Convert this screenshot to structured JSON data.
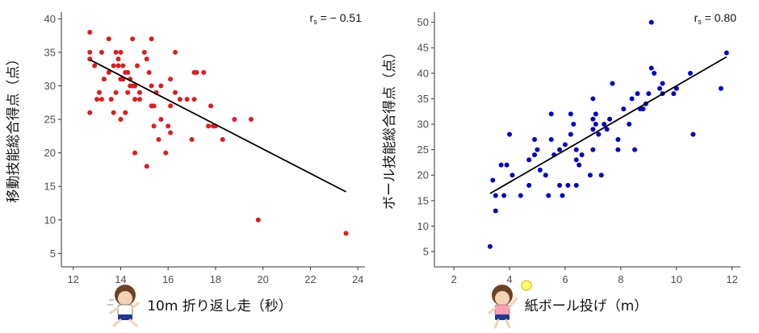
{
  "chart_data": [
    {
      "type": "scatter",
      "xlabel": "10m 折り返し走（秒）",
      "ylabel": "移動技能総合得点（点）",
      "annotation": {
        "prefix": "r",
        "subscript": "s",
        "value": " = − 0.51"
      },
      "xlim": [
        11.5,
        24.3
      ],
      "ylim": [
        3,
        41
      ],
      "xticks": [
        12,
        14,
        16,
        18,
        20,
        22,
        24
      ],
      "yticks": [
        5,
        10,
        15,
        20,
        25,
        30,
        35,
        40
      ],
      "color": "#e41a1c",
      "regression": {
        "x": [
          12.7,
          23.5
        ],
        "y": [
          33.9,
          14.2
        ]
      },
      "points": [
        [
          12.7,
          38
        ],
        [
          12.7,
          35
        ],
        [
          12.7,
          34
        ],
        [
          12.7,
          26
        ],
        [
          12.9,
          33
        ],
        [
          13.0,
          28
        ],
        [
          13.1,
          29
        ],
        [
          13.2,
          28
        ],
        [
          13.2,
          35
        ],
        [
          13.3,
          31
        ],
        [
          13.5,
          32
        ],
        [
          13.5,
          37
        ],
        [
          13.6,
          28
        ],
        [
          13.7,
          33
        ],
        [
          13.7,
          26
        ],
        [
          13.8,
          35
        ],
        [
          13.8,
          29
        ],
        [
          13.9,
          34
        ],
        [
          13.9,
          33
        ],
        [
          14.0,
          35
        ],
        [
          14.0,
          31
        ],
        [
          14.0,
          25
        ],
        [
          14.1,
          33
        ],
        [
          14.1,
          31
        ],
        [
          14.2,
          32
        ],
        [
          14.2,
          26
        ],
        [
          14.3,
          29
        ],
        [
          14.3,
          32
        ],
        [
          14.4,
          31
        ],
        [
          14.4,
          30
        ],
        [
          14.5,
          37
        ],
        [
          14.5,
          30
        ],
        [
          14.6,
          28
        ],
        [
          14.6,
          30
        ],
        [
          14.6,
          20
        ],
        [
          14.7,
          33
        ],
        [
          14.8,
          29
        ],
        [
          14.8,
          28
        ],
        [
          15.0,
          35
        ],
        [
          15.1,
          34
        ],
        [
          15.1,
          18
        ],
        [
          15.2,
          32
        ],
        [
          15.3,
          37
        ],
        [
          15.3,
          30
        ],
        [
          15.3,
          27
        ],
        [
          15.4,
          24
        ],
        [
          15.4,
          27
        ],
        [
          15.5,
          29
        ],
        [
          15.6,
          22
        ],
        [
          15.7,
          30
        ],
        [
          15.7,
          25
        ],
        [
          15.9,
          20
        ],
        [
          16.0,
          24
        ],
        [
          16.1,
          27
        ],
        [
          16.1,
          23
        ],
        [
          16.1,
          31
        ],
        [
          16.3,
          35
        ],
        [
          16.3,
          29
        ],
        [
          16.5,
          28
        ],
        [
          16.8,
          28
        ],
        [
          17.0,
          22
        ],
        [
          17.1,
          32
        ],
        [
          17.1,
          28
        ],
        [
          17.2,
          32
        ],
        [
          17.5,
          32
        ],
        [
          17.7,
          24
        ],
        [
          17.8,
          27
        ],
        [
          17.9,
          24
        ],
        [
          18.0,
          24
        ],
        [
          18.3,
          22
        ],
        [
          18.8,
          25
        ],
        [
          19.5,
          25
        ],
        [
          19.8,
          10
        ],
        [
          23.5,
          8
        ]
      ]
    },
    {
      "type": "scatter",
      "xlabel": "紙ボール投げ（m）",
      "ylabel": "ボール技能総合得点（点）",
      "annotation": {
        "prefix": "r",
        "subscript": "s",
        "value": " = 0.80"
      },
      "xlim": [
        1.3,
        12.3
      ],
      "ylim": [
        2,
        52
      ],
      "xticks": [
        2,
        4,
        6,
        8,
        10,
        12
      ],
      "yticks": [
        5,
        10,
        15,
        20,
        25,
        30,
        35,
        40,
        45,
        50
      ],
      "color": "#0000cc",
      "regression": {
        "x": [
          3.3,
          11.8
        ],
        "y": [
          16.4,
          43.2
        ]
      },
      "points": [
        [
          3.3,
          6
        ],
        [
          3.4,
          19
        ],
        [
          3.5,
          16
        ],
        [
          3.5,
          13
        ],
        [
          3.7,
          22
        ],
        [
          3.8,
          16
        ],
        [
          3.9,
          22
        ],
        [
          4.0,
          28
        ],
        [
          4.1,
          20
        ],
        [
          4.4,
          16
        ],
        [
          4.7,
          18
        ],
        [
          4.7,
          23
        ],
        [
          4.9,
          24
        ],
        [
          4.9,
          27
        ],
        [
          5.0,
          25
        ],
        [
          5.1,
          21
        ],
        [
          5.3,
          20
        ],
        [
          5.4,
          16
        ],
        [
          5.5,
          27
        ],
        [
          5.5,
          32
        ],
        [
          5.6,
          24
        ],
        [
          5.8,
          18
        ],
        [
          5.8,
          25
        ],
        [
          5.9,
          16
        ],
        [
          6.0,
          26
        ],
        [
          6.1,
          18
        ],
        [
          6.2,
          28
        ],
        [
          6.2,
          32
        ],
        [
          6.3,
          30
        ],
        [
          6.4,
          25
        ],
        [
          6.4,
          23
        ],
        [
          6.4,
          18
        ],
        [
          6.5,
          22
        ],
        [
          6.6,
          24
        ],
        [
          6.9,
          20
        ],
        [
          7.0,
          25
        ],
        [
          7.0,
          29
        ],
        [
          7.0,
          31
        ],
        [
          7.0,
          35
        ],
        [
          7.1,
          30
        ],
        [
          7.1,
          32
        ],
        [
          7.2,
          28
        ],
        [
          7.3,
          20
        ],
        [
          7.4,
          30
        ],
        [
          7.5,
          29
        ],
        [
          7.6,
          31
        ],
        [
          7.7,
          38
        ],
        [
          7.9,
          25
        ],
        [
          7.9,
          27
        ],
        [
          8.1,
          33
        ],
        [
          8.3,
          30
        ],
        [
          8.4,
          35
        ],
        [
          8.5,
          25
        ],
        [
          8.6,
          36
        ],
        [
          8.7,
          33
        ],
        [
          8.8,
          33
        ],
        [
          8.9,
          34
        ],
        [
          9.0,
          36
        ],
        [
          9.1,
          50
        ],
        [
          9.1,
          41
        ],
        [
          9.2,
          40
        ],
        [
          9.4,
          37
        ],
        [
          9.5,
          36
        ],
        [
          9.5,
          38
        ],
        [
          9.9,
          36
        ],
        [
          10.0,
          37
        ],
        [
          10.5,
          40
        ],
        [
          10.6,
          28
        ],
        [
          11.6,
          37
        ],
        [
          11.8,
          44
        ]
      ]
    }
  ]
}
